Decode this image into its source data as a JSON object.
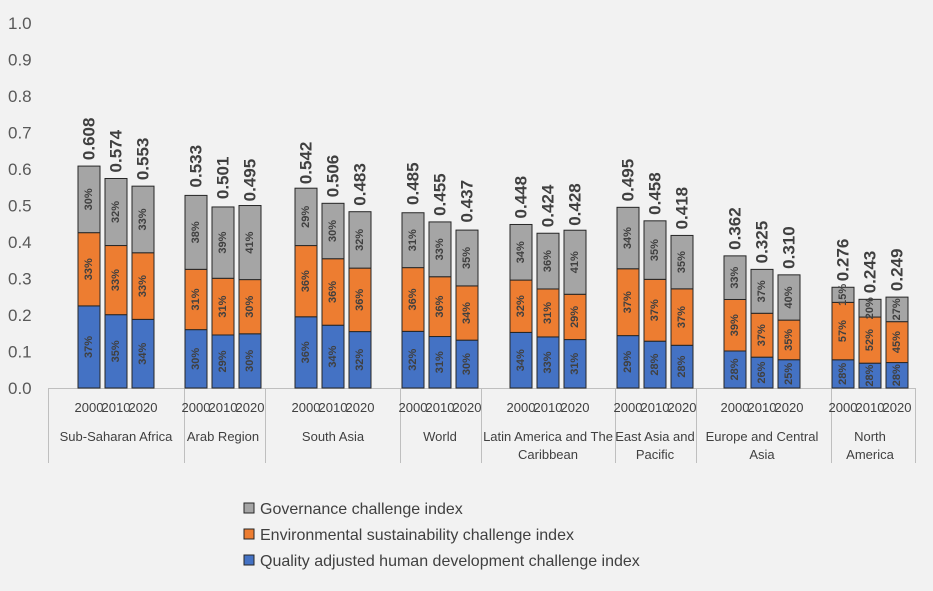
{
  "chart_data": {
    "type": "bar",
    "stacked": true,
    "ylim": [
      0,
      1.0
    ],
    "yticks": [
      "0.0",
      "0.1",
      "0.2",
      "0.3",
      "0.4",
      "0.5",
      "0.6",
      "0.7",
      "0.8",
      "0.9",
      "1.0"
    ],
    "colors": {
      "quality": "#4472c4",
      "environment": "#ed7d31",
      "governance": "#a5a5a5",
      "outline": "#262626",
      "axis": "#bfbfbf"
    },
    "legend": [
      {
        "key": "governance",
        "label": "Governance challenge index"
      },
      {
        "key": "environment",
        "label": "Environmental sustainability challenge index"
      },
      {
        "key": "quality",
        "label": "Quality adjusted human development challenge index"
      }
    ],
    "groups": [
      {
        "name": [
          "Sub-Saharan Africa"
        ],
        "bars": [
          {
            "year": "2000",
            "total": 0.608,
            "total_label": "0.608",
            "shares": [
              37,
              33,
              30
            ]
          },
          {
            "year": "2010",
            "total": 0.574,
            "total_label": "0.574",
            "shares": [
              35,
              33,
              32
            ]
          },
          {
            "year": "2020",
            "total": 0.553,
            "total_label": "0.553",
            "shares": [
              34,
              33,
              33
            ]
          }
        ]
      },
      {
        "name": [
          "Arab Region"
        ],
        "bars": [
          {
            "year": "2000",
            "total": 0.533,
            "total_label": "0.533",
            "shares": [
              30,
              31,
              38
            ]
          },
          {
            "year": "2010",
            "total": 0.501,
            "total_label": "0.501",
            "shares": [
              29,
              31,
              39
            ]
          },
          {
            "year": "2020",
            "total": 0.495,
            "total_label": "0.495",
            "shares": [
              30,
              30,
              41
            ]
          }
        ]
      },
      {
        "name": [
          "South Asia"
        ],
        "bars": [
          {
            "year": "2000",
            "total": 0.542,
            "total_label": "0.542",
            "shares": [
              36,
              36,
              29
            ]
          },
          {
            "year": "2010",
            "total": 0.506,
            "total_label": "0.506",
            "shares": [
              34,
              36,
              30
            ]
          },
          {
            "year": "2020",
            "total": 0.483,
            "total_label": "0.483",
            "shares": [
              32,
              36,
              32
            ]
          }
        ]
      },
      {
        "name": [
          "World"
        ],
        "bars": [
          {
            "year": "2000",
            "total": 0.485,
            "total_label": "0.485",
            "shares": [
              32,
              36,
              31
            ]
          },
          {
            "year": "2010",
            "total": 0.455,
            "total_label": "0.455",
            "shares": [
              31,
              36,
              33
            ]
          },
          {
            "year": "2020",
            "total": 0.437,
            "total_label": "0.437",
            "shares": [
              30,
              34,
              35
            ]
          }
        ]
      },
      {
        "name": [
          "Latin America and The",
          "Caribbean"
        ],
        "bars": [
          {
            "year": "2000",
            "total": 0.448,
            "total_label": "0.448",
            "shares": [
              34,
              32,
              34
            ]
          },
          {
            "year": "2010",
            "total": 0.424,
            "total_label": "0.424",
            "shares": [
              33,
              31,
              36
            ]
          },
          {
            "year": "2020",
            "total": 0.428,
            "total_label": "0.428",
            "shares": [
              31,
              29,
              41
            ]
          }
        ]
      },
      {
        "name": [
          "East Asia and",
          "Pacific"
        ],
        "bars": [
          {
            "year": "2000",
            "total": 0.495,
            "total_label": "0.495",
            "shares": [
              29,
              37,
              34
            ]
          },
          {
            "year": "2010",
            "total": 0.458,
            "total_label": "0.458",
            "shares": [
              28,
              37,
              35
            ]
          },
          {
            "year": "2020",
            "total": 0.418,
            "total_label": "0.418",
            "shares": [
              28,
              37,
              35
            ]
          }
        ]
      },
      {
        "name": [
          "Europe and Central",
          "Asia"
        ],
        "bars": [
          {
            "year": "2000",
            "total": 0.362,
            "total_label": "0.362",
            "shares": [
              28,
              39,
              33
            ]
          },
          {
            "year": "2010",
            "total": 0.325,
            "total_label": "0.325",
            "shares": [
              26,
              37,
              37
            ]
          },
          {
            "year": "2020",
            "total": 0.31,
            "total_label": "0.310",
            "shares": [
              25,
              35,
              40
            ]
          }
        ]
      },
      {
        "name": [
          "North",
          "America"
        ],
        "bars": [
          {
            "year": "2000",
            "total": 0.276,
            "total_label": "0.276",
            "shares": [
              28,
              57,
              15
            ]
          },
          {
            "year": "2010",
            "total": 0.243,
            "total_label": "0.243",
            "shares": [
              28,
              52,
              20
            ]
          },
          {
            "year": "2020",
            "total": 0.249,
            "total_label": "0.249",
            "shares": [
              28,
              45,
              27
            ]
          }
        ]
      }
    ]
  }
}
